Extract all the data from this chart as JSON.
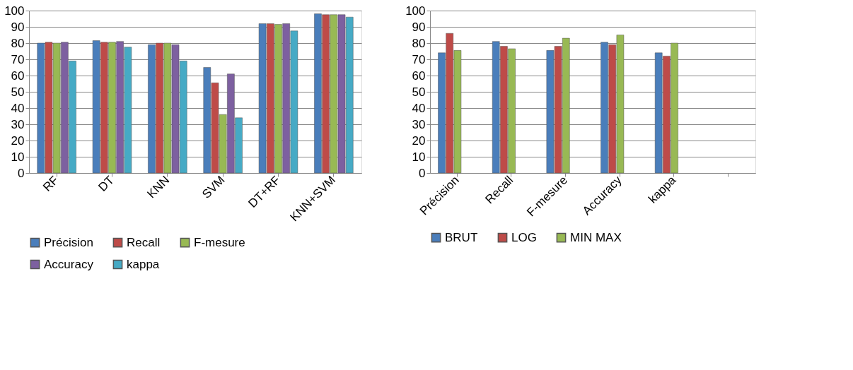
{
  "chart_data": [
    {
      "type": "bar",
      "categories": [
        "RF",
        "DT",
        "KNN",
        "SVM",
        "DT+RF",
        "KNN+SVM"
      ],
      "ylim": [
        0,
        100
      ],
      "yticks": [
        0,
        10,
        20,
        30,
        40,
        50,
        60,
        70,
        80,
        90,
        100
      ],
      "grid": "y",
      "legend": "bottom",
      "series": [
        {
          "name": "Précision",
          "color": "#4a7ebb",
          "values": [
            80,
            81.5,
            79,
            65,
            92,
            98
          ]
        },
        {
          "name": "Recall",
          "color": "#be4b48",
          "values": [
            80.5,
            80.5,
            80,
            55.5,
            92,
            97.5
          ]
        },
        {
          "name": "F-mesure",
          "color": "#98b954",
          "values": [
            80,
            80.5,
            80,
            36,
            91.5,
            97.5
          ]
        },
        {
          "name": "Accuracy",
          "color": "#7d60a0",
          "values": [
            80.5,
            81,
            79,
            61,
            92,
            97.5
          ]
        },
        {
          "name": "kappa",
          "color": "#46aac5",
          "values": [
            69,
            77.5,
            69,
            34,
            87.5,
            96
          ]
        }
      ]
    },
    {
      "type": "bar",
      "categories": [
        "Précision",
        "Recall",
        "F-mesure",
        "Accuracy",
        "kappa",
        null
      ],
      "ylim": [
        0,
        100
      ],
      "yticks": [
        0,
        10,
        20,
        30,
        40,
        50,
        60,
        70,
        80,
        90,
        100
      ],
      "grid": "y",
      "legend": "bottom",
      "series": [
        {
          "name": "BRUT",
          "color": "#4a7ebb",
          "values": [
            74,
            81,
            75.5,
            80.5,
            74,
            null
          ]
        },
        {
          "name": "LOG",
          "color": "#be4b48",
          "values": [
            86,
            78,
            78,
            79,
            72,
            null
          ]
        },
        {
          "name": "MIN MAX",
          "color": "#98b954",
          "values": [
            75.5,
            76.5,
            83,
            85,
            80,
            null
          ]
        }
      ]
    }
  ]
}
